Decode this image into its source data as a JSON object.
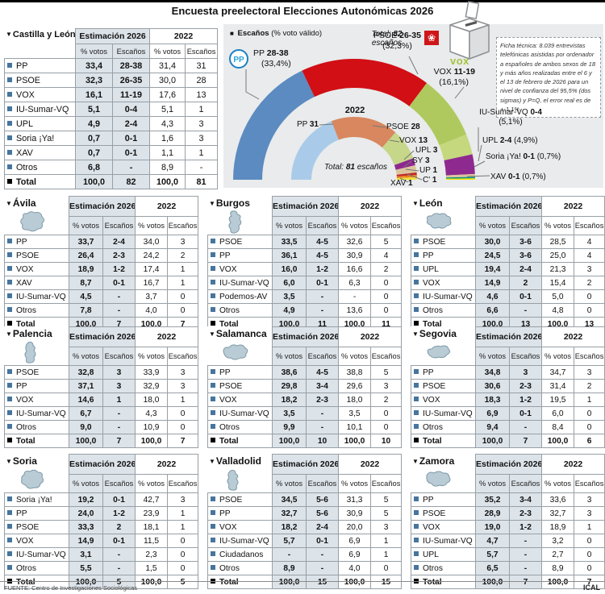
{
  "title": "Encuesta preelectoral Elecciones Autonómicas 2026",
  "footer": {
    "source": "FUENTE: Centro de Investigaciones Sociológicas",
    "credit": "ICAL"
  },
  "table_headers": {
    "estimation": "Estimación 2026",
    "previous": "2022",
    "votes": "% votos",
    "seats": "Escaños"
  },
  "colors": {
    "bullet": "#46759d",
    "shade": "#dce3e9",
    "panel": "#e9ebec",
    "map_fill": "#b9ccd6",
    "map_stroke": "#7e98a6"
  },
  "main_table": {
    "region": "Castilla y León",
    "rows": [
      [
        "PP",
        "33,4",
        "28-38",
        "31,4",
        "31"
      ],
      [
        "PSOE",
        "32,3",
        "26-35",
        "30,0",
        "28"
      ],
      [
        "VOX",
        "16,1",
        "11-19",
        "17,6",
        "13"
      ],
      [
        "IU-Sumar-VQ",
        "5,1",
        "0-4",
        "5,1",
        "1"
      ],
      [
        "UPL",
        "4,9",
        "2-4",
        "4,3",
        "3"
      ],
      [
        "Soria ¡Ya!",
        "0,7",
        "0-1",
        "1,6",
        "3"
      ],
      [
        "XAV",
        "0,7",
        "0-1",
        "1,1",
        "1"
      ],
      [
        "Otros",
        "6,8",
        "-",
        "8,9",
        "-"
      ]
    ],
    "total": [
      "Total",
      "100,0",
      "82",
      "100,0",
      "81"
    ]
  },
  "provinces": [
    {
      "name": "Ávila",
      "rows": [
        [
          "PP",
          "33,7",
          "2-4",
          "34,0",
          "3"
        ],
        [
          "PSOE",
          "26,4",
          "2-3",
          "24,2",
          "2"
        ],
        [
          "VOX",
          "18,9",
          "1-2",
          "17,4",
          "1"
        ],
        [
          "XAV",
          "8,7",
          "0-1",
          "16,7",
          "1"
        ],
        [
          "IU-Sumar-VQ",
          "4,5",
          "-",
          "3,7",
          "0"
        ],
        [
          "Otros",
          "7,8",
          "-",
          "4,0",
          "0"
        ]
      ],
      "total": [
        "Total",
        "100,0",
        "7",
        "100,0",
        "7"
      ]
    },
    {
      "name": "Burgos",
      "rows": [
        [
          "PSOE",
          "33,5",
          "4-5",
          "32,6",
          "5"
        ],
        [
          "PP",
          "36,1",
          "4-5",
          "30,9",
          "4"
        ],
        [
          "VOX",
          "16,0",
          "1-2",
          "16,6",
          "2"
        ],
        [
          "IU-Sumar-VQ",
          "6,0",
          "0-1",
          "6,3",
          "0"
        ],
        [
          "Podemos-AV",
          "3,5",
          "-",
          "-",
          "0"
        ],
        [
          "Otros",
          "4,9",
          "-",
          "13,6",
          "0"
        ]
      ],
      "total": [
        "Total",
        "100,0",
        "11",
        "100,0",
        "11"
      ]
    },
    {
      "name": "León",
      "rows": [
        [
          "PSOE",
          "30,0",
          "3-6",
          "28,5",
          "4"
        ],
        [
          "PP",
          "24,5",
          "3-6",
          "25,0",
          "4"
        ],
        [
          "UPL",
          "19,4",
          "2-4",
          "21,3",
          "3"
        ],
        [
          "VOX",
          "14,9",
          "2",
          "15,4",
          "2"
        ],
        [
          "IU-Sumar-VQ",
          "4,6",
          "0-1",
          "5,0",
          "0"
        ],
        [
          "Otros",
          "6,6",
          "-",
          "4,8",
          "0"
        ]
      ],
      "total": [
        "Total",
        "100,0",
        "13",
        "100,0",
        "13"
      ]
    },
    {
      "name": "Palencia",
      "rows": [
        [
          "PSOE",
          "32,8",
          "3",
          "33,9",
          "3"
        ],
        [
          "PP",
          "37,1",
          "3",
          "32,9",
          "3"
        ],
        [
          "VOX",
          "14,6",
          "1",
          "18,0",
          "1"
        ],
        [
          "IU-Sumar-VQ",
          "6,7",
          "-",
          "4,3",
          "0"
        ],
        [
          "Otros",
          "9,0",
          "-",
          "10,9",
          "0"
        ]
      ],
      "total": [
        "Total",
        "100,0",
        "7",
        "100,0",
        "7"
      ]
    },
    {
      "name": "Salamanca",
      "rows": [
        [
          "PP",
          "38,6",
          "4-5",
          "38,8",
          "5"
        ],
        [
          "PSOE",
          "29,8",
          "3-4",
          "29,6",
          "3"
        ],
        [
          "VOX",
          "18,2",
          "2-3",
          "18,0",
          "2"
        ],
        [
          "IU-Sumar-VQ",
          "3,5",
          "-",
          "3,5",
          "0"
        ],
        [
          "Otros",
          "9,9",
          "-",
          "10,1",
          "0"
        ]
      ],
      "total": [
        "Total",
        "100,0",
        "10",
        "100,0",
        "10"
      ]
    },
    {
      "name": "Segovia",
      "rows": [
        [
          "PP",
          "34,8",
          "3",
          "34,7",
          "3"
        ],
        [
          "PSOE",
          "30,6",
          "2-3",
          "31,4",
          "2"
        ],
        [
          "VOX",
          "18,3",
          "1-2",
          "19,5",
          "1"
        ],
        [
          "IU-Sumar-VQ",
          "6,9",
          "0-1",
          "6,0",
          "0"
        ],
        [
          "Otros",
          "9,4",
          "-",
          "8,4",
          "0"
        ]
      ],
      "total": [
        "Total",
        "100,0",
        "7",
        "100,0",
        "6"
      ]
    },
    {
      "name": "Soria",
      "rows": [
        [
          "Soria ¡Ya!",
          "19,2",
          "0-1",
          "42,7",
          "3"
        ],
        [
          "PP",
          "24,0",
          "1-2",
          "23,9",
          "1"
        ],
        [
          "PSOE",
          "33,3",
          "2",
          "18,1",
          "1"
        ],
        [
          "VOX",
          "14,9",
          "0-1",
          "11,5",
          "0"
        ],
        [
          "IU-Sumar-VQ",
          "3,1",
          "-",
          "2,3",
          "0"
        ],
        [
          "Otros",
          "5,5",
          "-",
          "1,5",
          "0"
        ]
      ],
      "total": [
        "Total",
        "100,0",
        "5",
        "100,0",
        "5"
      ]
    },
    {
      "name": "Valladolid",
      "rows": [
        [
          "PSOE",
          "34,5",
          "5-6",
          "31,3",
          "5"
        ],
        [
          "PP",
          "32,7",
          "5-6",
          "30,9",
          "5"
        ],
        [
          "VOX",
          "18,2",
          "2-4",
          "20,0",
          "3"
        ],
        [
          "IU-Sumar-VQ",
          "5,7",
          "0-1",
          "6,9",
          "1"
        ],
        [
          "Ciudadanos",
          "-",
          "-",
          "6,9",
          "1"
        ],
        [
          "Otros",
          "8,9",
          "-",
          "4,0",
          "0"
        ]
      ],
      "total": [
        "Total",
        "100,0",
        "15",
        "100,0",
        "15"
      ]
    },
    {
      "name": "Zamora",
      "rows": [
        [
          "PP",
          "35,2",
          "3-4",
          "33,6",
          "3"
        ],
        [
          "PSOE",
          "28,9",
          "2-3",
          "32,7",
          "3"
        ],
        [
          "VOX",
          "19,0",
          "1-2",
          "18,9",
          "1"
        ],
        [
          "IU-Sumar-VQ",
          "4,7",
          "-",
          "3,2",
          "0"
        ],
        [
          "UPL",
          "5,7",
          "-",
          "2,7",
          "0"
        ],
        [
          "Otros",
          "6,5",
          "-",
          "8,9",
          "0"
        ]
      ],
      "total": [
        "Total",
        "100,0",
        "7",
        "100,0",
        "7"
      ]
    }
  ],
  "chart": {
    "legend_bold": "Escaños",
    "legend_rest": " (% voto válido)",
    "total_2026": {
      "pre": "Total:",
      "num": "82",
      "word": "escaños"
    },
    "total_2022": {
      "pre": "Total:",
      "num": "81",
      "word": "escaños"
    },
    "inner_year": "2022",
    "logos": {
      "pp": "PP",
      "psoe": "❀",
      "vox": "vox"
    },
    "ficha": "Ficha técnica: 8.039 entrevistas telefónicas asistidas por ordenador a españoles de ambos sexos de 18 y más años realizadas entre el 6 y el 13 de febrero de 2026 para un nivel de confianza del 95,5% (dos sigmas) y P=Q, el error real es de +-1,1%"
  },
  "chart_data": {
    "type": "donut-half",
    "title": "Escaños (% voto válido)",
    "outer_2026": {
      "total_seats": 82,
      "segments": [
        {
          "party": "PP",
          "seats": "28-38",
          "pct": 33.4,
          "pct_label": "(33,4%)",
          "color": "#5b8bc0"
        },
        {
          "party": "PSOE",
          "seats": "26-35",
          "pct": 32.3,
          "pct_label": "(32,3%)",
          "color": "#d10f15"
        },
        {
          "party": "VOX",
          "seats": "11-19",
          "pct": 16.1,
          "pct_label": "(16,1%)",
          "color": "#afc95e"
        },
        {
          "party": "IU-Sumar-VQ",
          "seats": "0-4",
          "pct": 5.1,
          "pct_label": "(5,1%)",
          "color": "#c5d87d"
        },
        {
          "party": "UPL",
          "seats": "2-4",
          "pct": 4.9,
          "pct_label": "(4,9%)",
          "color": "#8e2a8f"
        },
        {
          "party": "Soria ¡Ya!",
          "seats": "0-1",
          "pct": 0.7,
          "pct_label": "(0,7%)",
          "color": "#dcc59d"
        },
        {
          "party": "XAV",
          "seats": "0-1",
          "pct": 0.7,
          "pct_label": "(0,7%)",
          "color": "#00917a",
          "color2": "#f2e400"
        }
      ]
    },
    "inner_2022": {
      "total_seats": 81,
      "segments": [
        {
          "party": "PP",
          "seats": 31,
          "color": "#a9cbe9"
        },
        {
          "party": "PSOE",
          "seats": 28,
          "color": "#d8875f"
        },
        {
          "party": "VOX",
          "seats": 13,
          "color": "#c7d78a"
        },
        {
          "party": "UPL",
          "seats": 3,
          "color": "#8e2a8f"
        },
        {
          "party": "SY",
          "seats": 3,
          "color": "#dcc59d"
        },
        {
          "party": "UP",
          "seats": 1,
          "color": "#c22525"
        },
        {
          "party": "C'",
          "seats": 1,
          "color": "#e8821e"
        },
        {
          "party": "XAV",
          "seats": 1,
          "color": "#f0e13a"
        }
      ]
    }
  }
}
